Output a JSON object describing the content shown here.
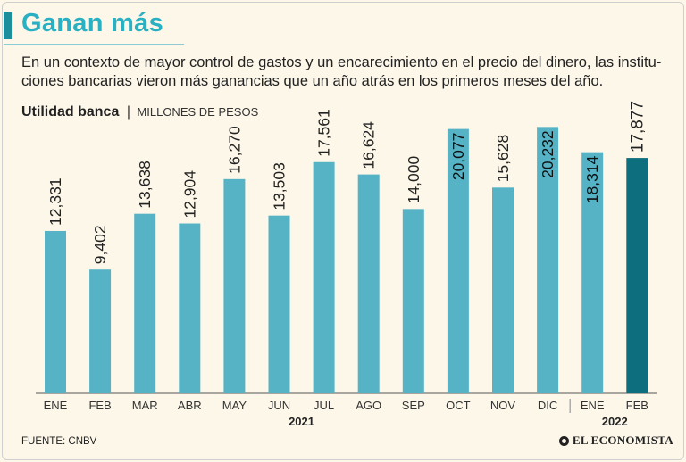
{
  "header": {
    "title": "Ganan más",
    "subtitle": "En un contexto de mayor control de gastos y un encarecimiento en el precio del dinero, las institu-ciones bancarias vieron más ganancias que un año atrás en los primeros meses del año."
  },
  "chart_heading": {
    "label": "Utilidad banca",
    "separator": "|",
    "unit": "MILLONES DE PESOS"
  },
  "chart_data": {
    "type": "bar",
    "title": "Utilidad banca",
    "ylabel": "MILLONES DE PESOS",
    "xlabel": "",
    "ylim": [
      0,
      21000
    ],
    "grid": false,
    "categories": [
      "ENE",
      "FEB",
      "MAR",
      "ABR",
      "MAY",
      "JUN",
      "JUL",
      "AGO",
      "SEP",
      "OCT",
      "NOV",
      "DIC",
      "ENE",
      "FEB"
    ],
    "values": [
      12331,
      9402,
      13638,
      12904,
      16270,
      13503,
      17561,
      16624,
      14000,
      20077,
      15628,
      20232,
      18314,
      17877
    ],
    "labels": [
      "12,331",
      "9,402",
      "13,638",
      "12,904",
      "16,270",
      "13,503",
      "17,561",
      "16,624",
      "14,000",
      "20,077",
      "15,628",
      "20,232",
      "18,314",
      "17,877"
    ],
    "year_groups": [
      {
        "label": "2021",
        "first": 0,
        "last": 11
      },
      {
        "label": "2022",
        "first": 12,
        "last": 13
      }
    ],
    "highlight_index": 13,
    "colors": {
      "bar": "#56b3c6",
      "highlight": "#0d6e7e",
      "axis": "#555555"
    }
  },
  "footer": {
    "source": "FUENTE: CNBV",
    "brand": "EL ECONOMISTA"
  }
}
